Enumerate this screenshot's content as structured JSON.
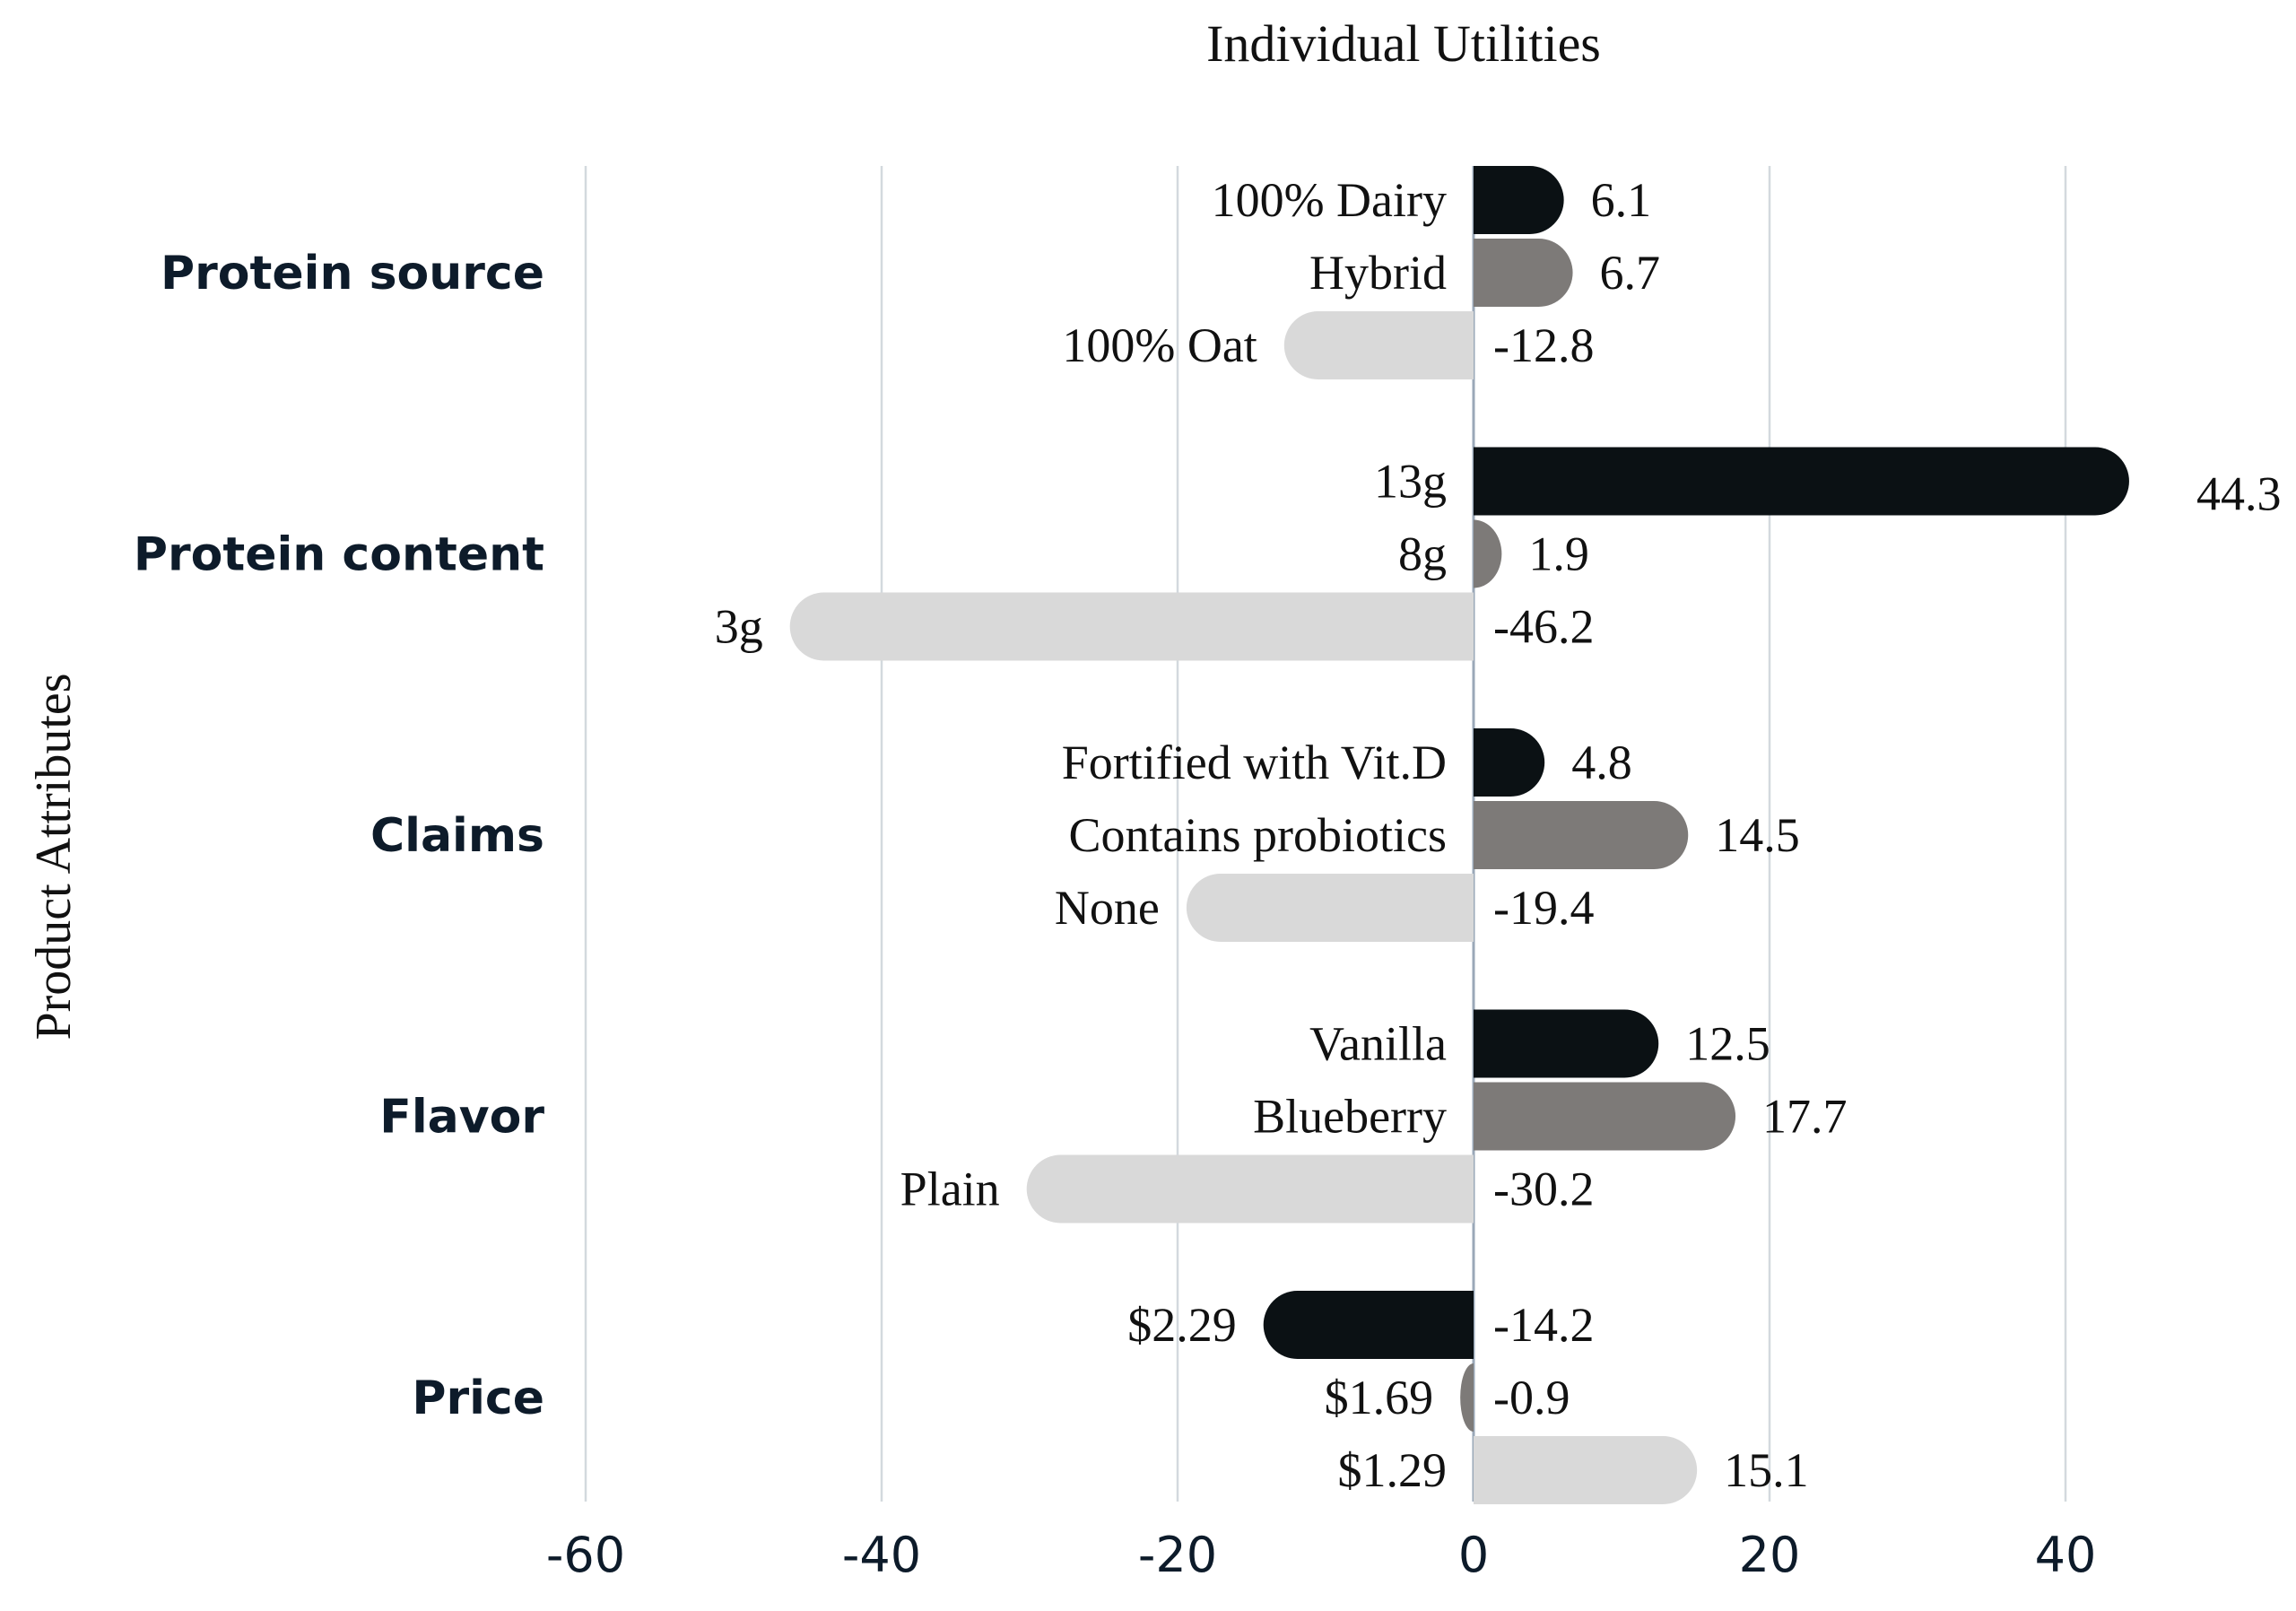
{
  "chart_data": {
    "type": "bar",
    "orientation": "horizontal",
    "title": "Individual Utilities",
    "xlabel": "",
    "ylabel": "Product Attributes",
    "xlim": [
      -60,
      50
    ],
    "xticks": [
      -60,
      -40,
      -20,
      0,
      20,
      40
    ],
    "grid": true,
    "colors": {
      "level1": "#0b1114",
      "level2": "#7d7a78",
      "level3": "#d9d9d9",
      "grid": "#d3d9de",
      "category_text": "#0d1b2a"
    },
    "groups": [
      {
        "name": "Protein source",
        "levels": [
          {
            "label": "100% Dairy",
            "value": 6.1,
            "value_label": "6.1"
          },
          {
            "label": "Hybrid",
            "value": 6.7,
            "value_label": "6.7"
          },
          {
            "label": "100% Oat",
            "value": -12.8,
            "value_label": "-12.8"
          }
        ]
      },
      {
        "name": "Protein content",
        "levels": [
          {
            "label": "13g",
            "value": 44.3,
            "value_label": "44.3"
          },
          {
            "label": "8g",
            "value": 1.9,
            "value_label": "1.9"
          },
          {
            "label": "3g",
            "value": -46.2,
            "value_label": "-46.2"
          }
        ]
      },
      {
        "name": "Claims",
        "levels": [
          {
            "label": "Fortified with Vit.D",
            "value": 4.8,
            "value_label": "4.8"
          },
          {
            "label": "Contains probiotics",
            "value": 14.5,
            "value_label": "14.5"
          },
          {
            "label": "None",
            "value": -19.4,
            "value_label": "-19.4"
          }
        ]
      },
      {
        "name": "Flavor",
        "levels": [
          {
            "label": "Vanilla",
            "value": 12.5,
            "value_label": "12.5"
          },
          {
            "label": "Blueberry",
            "value": 17.7,
            "value_label": "17.7"
          },
          {
            "label": "Plain",
            "value": -30.2,
            "value_label": "-30.2"
          }
        ]
      },
      {
        "name": "Price",
        "levels": [
          {
            "label": "$2.29",
            "value": -14.2,
            "value_label": "-14.2"
          },
          {
            "label": "$1.69",
            "value": -0.9,
            "value_label": "-0.9"
          },
          {
            "label": "$1.29",
            "value": 15.1,
            "value_label": "15.1"
          }
        ]
      }
    ]
  }
}
